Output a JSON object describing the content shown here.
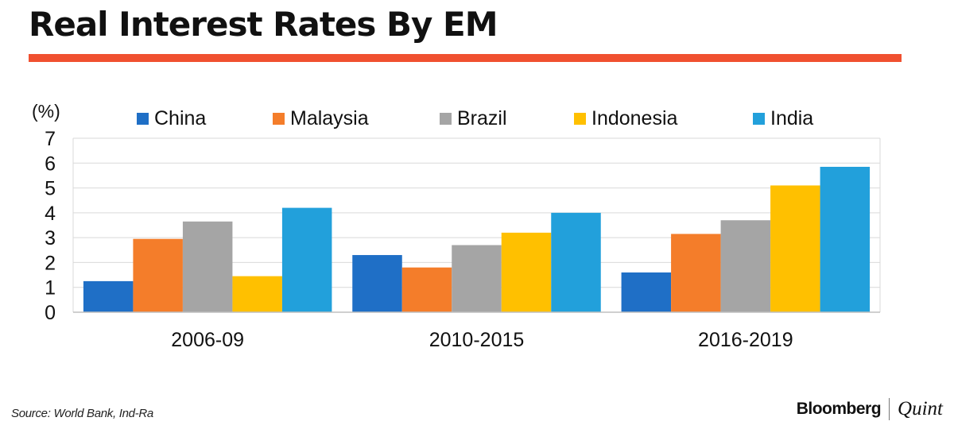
{
  "header": {
    "title": "Real Interest Rates By EM",
    "rule_color": "#F05030"
  },
  "footer": {
    "source": "Source: World Bank, Ind-Ra",
    "brand_primary": "Bloomberg",
    "brand_secondary": "Quint"
  },
  "chart_data": {
    "type": "bar",
    "title": "Real Interest Rates By EM",
    "ylabel": "(%)",
    "xlabel": "",
    "ylim": [
      0,
      7
    ],
    "yticks": [
      0,
      1,
      2,
      3,
      4,
      5,
      6,
      7
    ],
    "grid": true,
    "legend_position": "top",
    "categories": [
      "2006-09",
      "2010-2015",
      "2016-2019"
    ],
    "series": [
      {
        "name": "China",
        "color": "#1F6FC6",
        "values": [
          1.25,
          2.3,
          1.6
        ]
      },
      {
        "name": "Malaysia",
        "color": "#F47D2A",
        "values": [
          2.95,
          1.8,
          3.15
        ]
      },
      {
        "name": "Brazil",
        "color": "#A5A5A5",
        "values": [
          3.65,
          2.7,
          3.7
        ]
      },
      {
        "name": "Indonesia",
        "color": "#FFC000",
        "values": [
          1.45,
          3.2,
          5.1
        ]
      },
      {
        "name": "India",
        "color": "#22A0DB",
        "values": [
          4.2,
          4.0,
          5.85
        ]
      }
    ]
  }
}
